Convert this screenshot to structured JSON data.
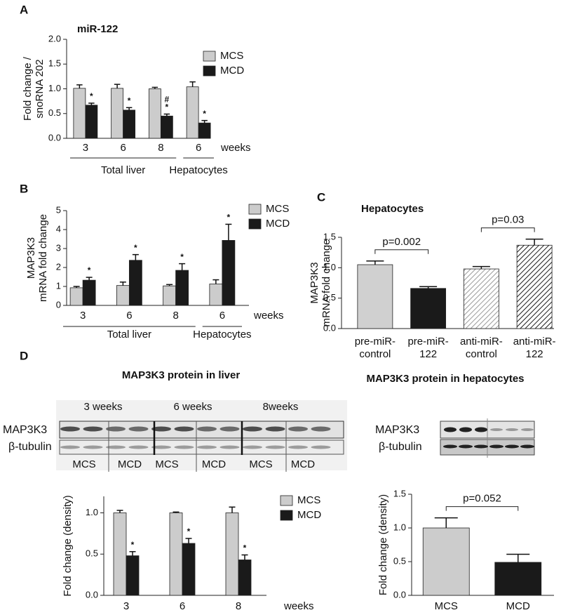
{
  "figure": {
    "panel_labels": [
      "A",
      "B",
      "C",
      "D"
    ],
    "liver_blot": {
      "title": "MAP3K3 protein in liver",
      "time_labels": [
        "3 weeks",
        "6 weeks",
        "8weeks"
      ],
      "rows": [
        "MAP3K3",
        "β-tubulin"
      ],
      "lanes": [
        "MCS",
        "MCD",
        "MCS",
        "MCD",
        "MCS",
        "MCD"
      ]
    },
    "hepatocyte_blot": {
      "title": "MAP3K3 protein in hepatocytes",
      "rows": [
        "MAP3K3",
        "β-tubulin"
      ]
    }
  },
  "chart_data": [
    {
      "type": "bar",
      "title": "miR-122",
      "ylabel": [
        "Fold change /",
        "snoRNA 202"
      ],
      "categories": [
        "3",
        "6",
        "8",
        "6"
      ],
      "x_unit": "weeks",
      "groups": [
        {
          "label": "Total liver",
          "span": [
            0,
            2
          ]
        },
        {
          "label": "Hepatocytes",
          "span": [
            3,
            3
          ]
        }
      ],
      "series": [
        {
          "name": "MCS",
          "color": "#cccccc",
          "values": [
            1.01,
            1.01,
            1.0,
            1.04
          ],
          "errors": [
            0.07,
            0.08,
            0.03,
            0.1
          ]
        },
        {
          "name": "MCD",
          "color": "#1a1a1a",
          "values": [
            0.67,
            0.57,
            0.45,
            0.31
          ],
          "errors": [
            0.04,
            0.05,
            0.04,
            0.05
          ],
          "annotations": [
            [
              "*"
            ],
            [
              "*"
            ],
            [
              "#",
              "*"
            ],
            [
              "*"
            ]
          ]
        }
      ],
      "ylim": [
        0,
        2
      ],
      "yticks": [
        {
          "value": 0,
          "label": "0.0"
        },
        {
          "value": 0.5,
          "label": "0.5"
        },
        {
          "value": 1,
          "label": "1.0"
        },
        {
          "value": 1.5,
          "label": "1.5"
        },
        {
          "value": 2,
          "label": "2.0"
        }
      ],
      "legend": "right"
    },
    {
      "type": "bar",
      "ylabel": [
        "MAP3K3",
        "mRNA fold change"
      ],
      "categories": [
        "3",
        "6",
        "8",
        "6"
      ],
      "x_unit": "weeks",
      "groups": [
        {
          "label": "Total liver",
          "span": [
            0,
            2
          ]
        },
        {
          "label": "Hepatocytes",
          "span": [
            3,
            3
          ]
        }
      ],
      "series": [
        {
          "name": "MCS",
          "color": "#cccccc",
          "values": [
            0.93,
            1.05,
            1.03,
            1.13
          ],
          "errors": [
            0.07,
            0.18,
            0.07,
            0.22
          ]
        },
        {
          "name": "MCD",
          "color": "#1a1a1a",
          "values": [
            1.33,
            2.38,
            1.85,
            3.43
          ],
          "errors": [
            0.15,
            0.3,
            0.35,
            0.85
          ],
          "annotations": [
            [
              "*"
            ],
            [
              "*"
            ],
            [
              "*"
            ],
            [
              "*"
            ]
          ]
        }
      ],
      "ylim": [
        0,
        5
      ],
      "yticks": [
        0,
        1,
        2,
        3,
        4,
        5
      ],
      "legend": "right"
    },
    {
      "type": "bar",
      "title": "Hepatocytes",
      "ylabel": [
        "MAP3K3",
        "mRNA fold change"
      ],
      "categories": [
        [
          "pre-miR-",
          "control"
        ],
        [
          "pre-miR-",
          "122"
        ],
        [
          "anti-miR-",
          "control"
        ],
        [
          "anti-miR-",
          "122"
        ]
      ],
      "values": [
        1.05,
        0.66,
        0.98,
        1.37
      ],
      "errors": [
        0.06,
        0.03,
        0.04,
        0.1
      ],
      "colors": [
        "#d0d0d0",
        "#1a1a1a",
        "#9a9a9a",
        "#1a1a1a"
      ],
      "hatch": [
        false,
        false,
        true,
        true
      ],
      "comparisons": [
        {
          "between": [
            0,
            1
          ],
          "label": "p=0.002"
        },
        {
          "between": [
            2,
            3
          ],
          "label": "p=0.03"
        }
      ],
      "ylim": [
        0,
        1.5
      ],
      "yticks": [
        {
          "value": 0,
          "label": "0.0"
        },
        {
          "value": 0.5,
          "label": "0.5"
        },
        {
          "value": 1,
          "label": "1.0"
        },
        {
          "value": 1.5,
          "label": "1.5"
        }
      ]
    },
    {
      "type": "bar",
      "ylabel": "Fold change (density)",
      "categories": [
        "3",
        "6",
        "8"
      ],
      "x_unit": "weeks",
      "series": [
        {
          "name": "MCS",
          "color": "#cccccc",
          "values": [
            1.0,
            1.0,
            1.0
          ],
          "errors": [
            0.03,
            0.01,
            0.07
          ]
        },
        {
          "name": "MCD",
          "color": "#1a1a1a",
          "values": [
            0.48,
            0.63,
            0.43
          ],
          "errors": [
            0.05,
            0.06,
            0.06
          ],
          "annotations": [
            [
              "*"
            ],
            [
              "*"
            ],
            [
              "*"
            ]
          ]
        }
      ],
      "ylim": [
        0,
        1.2
      ],
      "yticks": [
        {
          "value": 0,
          "label": "0.0"
        },
        {
          "value": 0.5,
          "label": "0.5"
        },
        {
          "value": 1,
          "label": "1.0"
        }
      ],
      "legend": "right"
    },
    {
      "type": "bar",
      "ylabel": "Fold change (density)",
      "categories": [
        "MCS",
        "MCD"
      ],
      "values": [
        1.0,
        0.49
      ],
      "errors": [
        0.15,
        0.12
      ],
      "colors": [
        "#cccccc",
        "#1a1a1a"
      ],
      "comparisons": [
        {
          "between": [
            0,
            1
          ],
          "label": "p=0.052"
        }
      ],
      "ylim": [
        0,
        1.5
      ],
      "yticks": [
        {
          "value": 0,
          "label": "0.0"
        },
        {
          "value": 0.5,
          "label": "0.5"
        },
        {
          "value": 1,
          "label": "1.0"
        },
        {
          "value": 1.5,
          "label": "1.5"
        }
      ]
    }
  ]
}
